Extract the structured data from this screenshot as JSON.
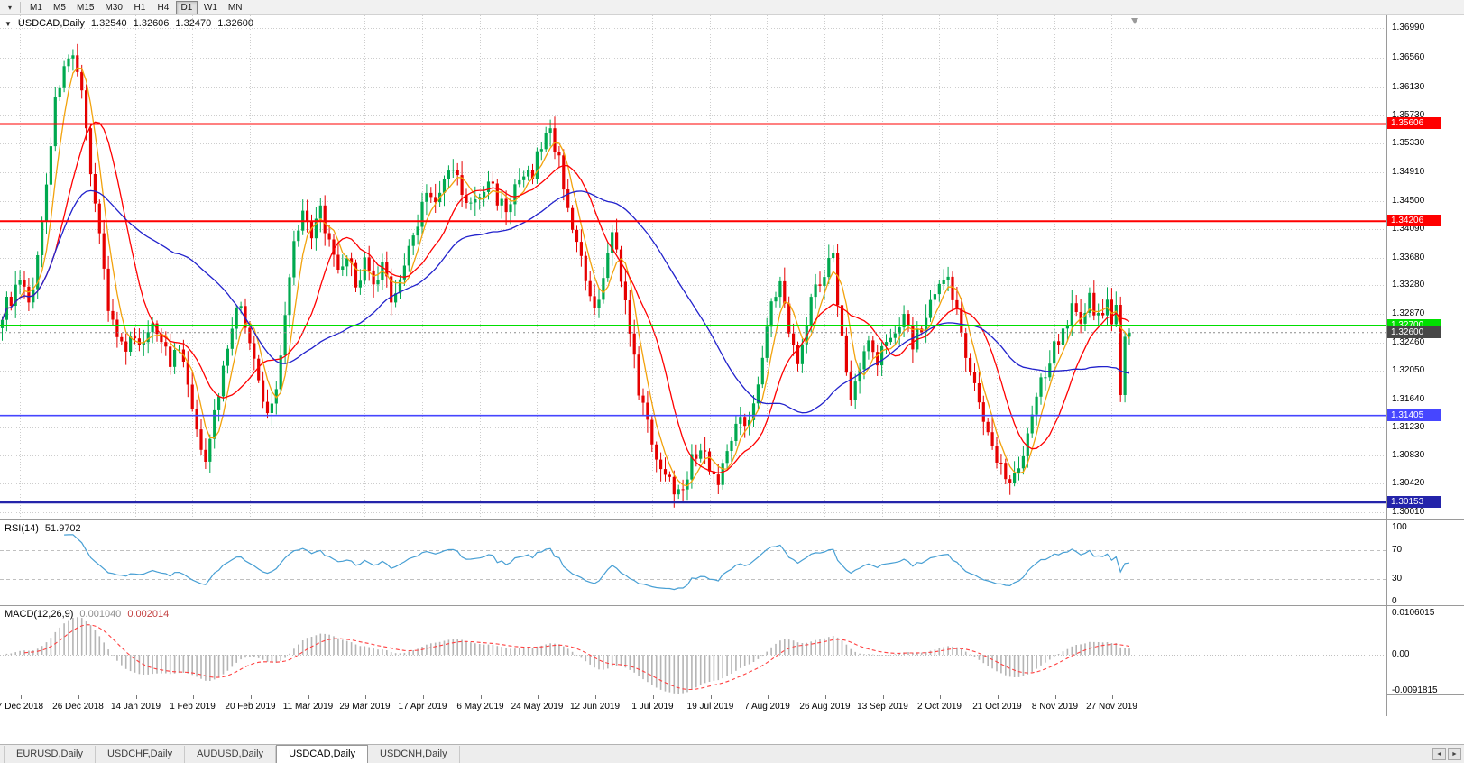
{
  "toolbar": {
    "dropdown_icon": "▾",
    "timeframes": [
      {
        "label": "M1",
        "active": false
      },
      {
        "label": "M5",
        "active": false
      },
      {
        "label": "M15",
        "active": false
      },
      {
        "label": "M30",
        "active": false
      },
      {
        "label": "H1",
        "active": false
      },
      {
        "label": "H4",
        "active": false
      },
      {
        "label": "D1",
        "active": true
      },
      {
        "label": "W1",
        "active": false
      },
      {
        "label": "MN",
        "active": false
      }
    ]
  },
  "chart": {
    "title_icon": "▼",
    "symbol_title": "USDCAD,Daily",
    "ohlc": {
      "open": "1.32540",
      "high": "1.32606",
      "low": "1.32470",
      "close": "1.32600"
    },
    "scale": {
      "min": 1.3001,
      "max": 1.3699
    },
    "price_axis_labels": [
      "1.36990",
      "1.36560",
      "1.36130",
      "1.35730",
      "1.35330",
      "1.34910",
      "1.34500",
      "1.34090",
      "1.33680",
      "1.33280",
      "1.32870",
      "1.32460",
      "1.32050",
      "1.31640",
      "1.31230",
      "1.30830",
      "1.30420",
      "1.30010"
    ],
    "date_axis_labels": [
      "7 Dec 2018",
      "26 Dec 2018",
      "14 Jan 2019",
      "1 Feb 2019",
      "20 Feb 2019",
      "11 Mar 2019",
      "29 Mar 2019",
      "17 Apr 2019",
      "6 May 2019",
      "24 May 2019",
      "12 Jun 2019",
      "1 Jul 2019",
      "19 Jul 2019",
      "7 Aug 2019",
      "26 Aug 2019",
      "13 Sep 2019",
      "2 Oct 2019",
      "21 Oct 2019",
      "8 Nov 2019",
      "27 Nov 2019"
    ],
    "hlines": [
      {
        "value": 1.35606,
        "label": "1.35606",
        "color": "#FF0000",
        "width": 2
      },
      {
        "value": 1.34206,
        "label": "1.34206",
        "color": "#FF0000",
        "width": 2
      },
      {
        "value": 1.327,
        "label": "1.32700",
        "color": "#00DF00",
        "width": 2
      },
      {
        "value": 1.31405,
        "label": "1.31405",
        "color": "#4646FF",
        "width": 1.6
      },
      {
        "value": 1.30153,
        "label": "1.30153",
        "color": "#2424AA",
        "width": 2.4
      }
    ],
    "current_price": {
      "value": 1.326,
      "label": "1.32600",
      "tag_color": "#474747",
      "line_color": "#8a8a8a"
    }
  },
  "rsi": {
    "name": "RSI(14)",
    "value": "51.9702",
    "line_color": "#479FD4",
    "level_color": "#c0c0c0",
    "levels": [
      {
        "v": 100,
        "label": "100",
        "dashed": false
      },
      {
        "v": 70,
        "label": "70",
        "dashed": true
      },
      {
        "v": 30,
        "label": "30",
        "dashed": true
      },
      {
        "v": 0,
        "label": "0",
        "dashed": false
      }
    ]
  },
  "macd": {
    "name": "MACD(12,26,9)",
    "value_main": "0.001040",
    "value_signal": "0.002014",
    "hist_color": "#b5b5b5",
    "signal_color": "#FF4040",
    "zero_color": "#c0c0c0",
    "axis_labels": [
      {
        "v": 0.0106015,
        "label": "0.0106015"
      },
      {
        "v": 0,
        "label": "0.00"
      },
      {
        "v": -0.0091815,
        "label": "-0.0091815"
      }
    ],
    "scale": {
      "min": -0.0091815,
      "max": 0.0106015
    }
  },
  "tabs": {
    "left_arrow": "◄",
    "right_arrow": "►",
    "items": [
      {
        "label": "EURUSD,Daily",
        "active": false
      },
      {
        "label": "USDCHF,Daily",
        "active": false
      },
      {
        "label": "AUDUSD,Daily",
        "active": false
      },
      {
        "label": "USDCAD,Daily",
        "active": true
      },
      {
        "label": "USDCNH,Daily",
        "active": false
      }
    ]
  },
  "chart_data": {
    "type": "candlestick",
    "symbol": "USDCAD",
    "timeframe": "Daily",
    "candle_count": 256,
    "first_label_index": 4,
    "label_step": 13,
    "bull_color": "#00A94F",
    "bear_color": "#E60000",
    "last_close": 1.326,
    "moving_averages": [
      {
        "period": 5,
        "color": "#F2A20C"
      },
      {
        "period": 13,
        "color": "#FF0000"
      },
      {
        "period": 40,
        "color": "#2222CC"
      }
    ],
    "indicators": {
      "rsi_period": 14,
      "macd": [
        12,
        26,
        9
      ]
    },
    "close_keyframes": [
      [
        0,
        1.329
      ],
      [
        2,
        1.331
      ],
      [
        4,
        1.333
      ],
      [
        6,
        1.33
      ],
      [
        8,
        1.3365
      ],
      [
        10,
        1.348
      ],
      [
        12,
        1.359
      ],
      [
        14,
        1.365
      ],
      [
        16,
        1.3648
      ],
      [
        18,
        1.36
      ],
      [
        20,
        1.35
      ],
      [
        22,
        1.34
      ],
      [
        24,
        1.33
      ],
      [
        26,
        1.3255
      ],
      [
        28,
        1.3225
      ],
      [
        30,
        1.3262
      ],
      [
        32,
        1.324
      ],
      [
        34,
        1.328
      ],
      [
        36,
        1.3252
      ],
      [
        38,
        1.3215
      ],
      [
        40,
        1.3235
      ],
      [
        42,
        1.3185
      ],
      [
        44,
        1.311
      ],
      [
        46,
        1.3085
      ],
      [
        48,
        1.314
      ],
      [
        50,
        1.321
      ],
      [
        52,
        1.3275
      ],
      [
        54,
        1.3298
      ],
      [
        56,
        1.3245
      ],
      [
        58,
        1.3185
      ],
      [
        60,
        1.314
      ],
      [
        62,
        1.318
      ],
      [
        64,
        1.329
      ],
      [
        66,
        1.339
      ],
      [
        68,
        1.3445
      ],
      [
        70,
        1.339
      ],
      [
        72,
        1.344
      ],
      [
        74,
        1.3385
      ],
      [
        76,
        1.334
      ],
      [
        78,
        1.3372
      ],
      [
        80,
        1.333
      ],
      [
        82,
        1.336
      ],
      [
        84,
        1.3322
      ],
      [
        86,
        1.3352
      ],
      [
        88,
        1.3312
      ],
      [
        90,
        1.3335
      ],
      [
        92,
        1.338
      ],
      [
        94,
        1.342
      ],
      [
        96,
        1.347
      ],
      [
        98,
        1.344
      ],
      [
        100,
        1.3478
      ],
      [
        102,
        1.3498
      ],
      [
        104,
        1.346
      ],
      [
        106,
        1.344
      ],
      [
        108,
        1.3455
      ],
      [
        110,
        1.3478
      ],
      [
        112,
        1.3455
      ],
      [
        114,
        1.3438
      ],
      [
        116,
        1.3465
      ],
      [
        118,
        1.348
      ],
      [
        120,
        1.3492
      ],
      [
        122,
        1.353
      ],
      [
        124,
        1.3556
      ],
      [
        126,
        1.3505
      ],
      [
        128,
        1.3445
      ],
      [
        130,
        1.3388
      ],
      [
        132,
        1.333
      ],
      [
        134,
        1.3285
      ],
      [
        136,
        1.333
      ],
      [
        138,
        1.3415
      ],
      [
        140,
        1.334
      ],
      [
        142,
        1.3255
      ],
      [
        144,
        1.318
      ],
      [
        146,
        1.3125
      ],
      [
        148,
        1.3085
      ],
      [
        150,
        1.3055
      ],
      [
        152,
        1.3035
      ],
      [
        154,
        1.3045
      ],
      [
        156,
        1.3075
      ],
      [
        158,
        1.3095
      ],
      [
        160,
        1.307
      ],
      [
        162,
        1.3042
      ],
      [
        164,
        1.309
      ],
      [
        166,
        1.314
      ],
      [
        168,
        1.312
      ],
      [
        170,
        1.3165
      ],
      [
        172,
        1.3225
      ],
      [
        174,
        1.33
      ],
      [
        176,
        1.333
      ],
      [
        178,
        1.326
      ],
      [
        180,
        1.3225
      ],
      [
        182,
        1.3282
      ],
      [
        184,
        1.333
      ],
      [
        186,
        1.3345
      ],
      [
        188,
        1.3372
      ],
      [
        190,
        1.325
      ],
      [
        192,
        1.3165
      ],
      [
        194,
        1.3215
      ],
      [
        196,
        1.3245
      ],
      [
        198,
        1.3215
      ],
      [
        200,
        1.3245
      ],
      [
        202,
        1.327
      ],
      [
        204,
        1.3288
      ],
      [
        206,
        1.3246
      ],
      [
        208,
        1.3266
      ],
      [
        210,
        1.3298
      ],
      [
        212,
        1.332
      ],
      [
        214,
        1.3335
      ],
      [
        216,
        1.329
      ],
      [
        218,
        1.3235
      ],
      [
        220,
        1.318
      ],
      [
        222,
        1.3135
      ],
      [
        224,
        1.31
      ],
      [
        226,
        1.3068
      ],
      [
        228,
        1.305
      ],
      [
        230,
        1.3065
      ],
      [
        232,
        1.312
      ],
      [
        234,
        1.3168
      ],
      [
        236,
        1.3205
      ],
      [
        238,
        1.324
      ],
      [
        240,
        1.3268
      ],
      [
        242,
        1.3295
      ],
      [
        244,
        1.3278
      ],
      [
        246,
        1.3308
      ],
      [
        248,
        1.3282
      ],
      [
        250,
        1.33
      ],
      [
        251,
        1.3272
      ],
      [
        252,
        1.33
      ],
      [
        253,
        1.317
      ],
      [
        254,
        1.3254
      ],
      [
        255,
        1.326
      ]
    ]
  }
}
